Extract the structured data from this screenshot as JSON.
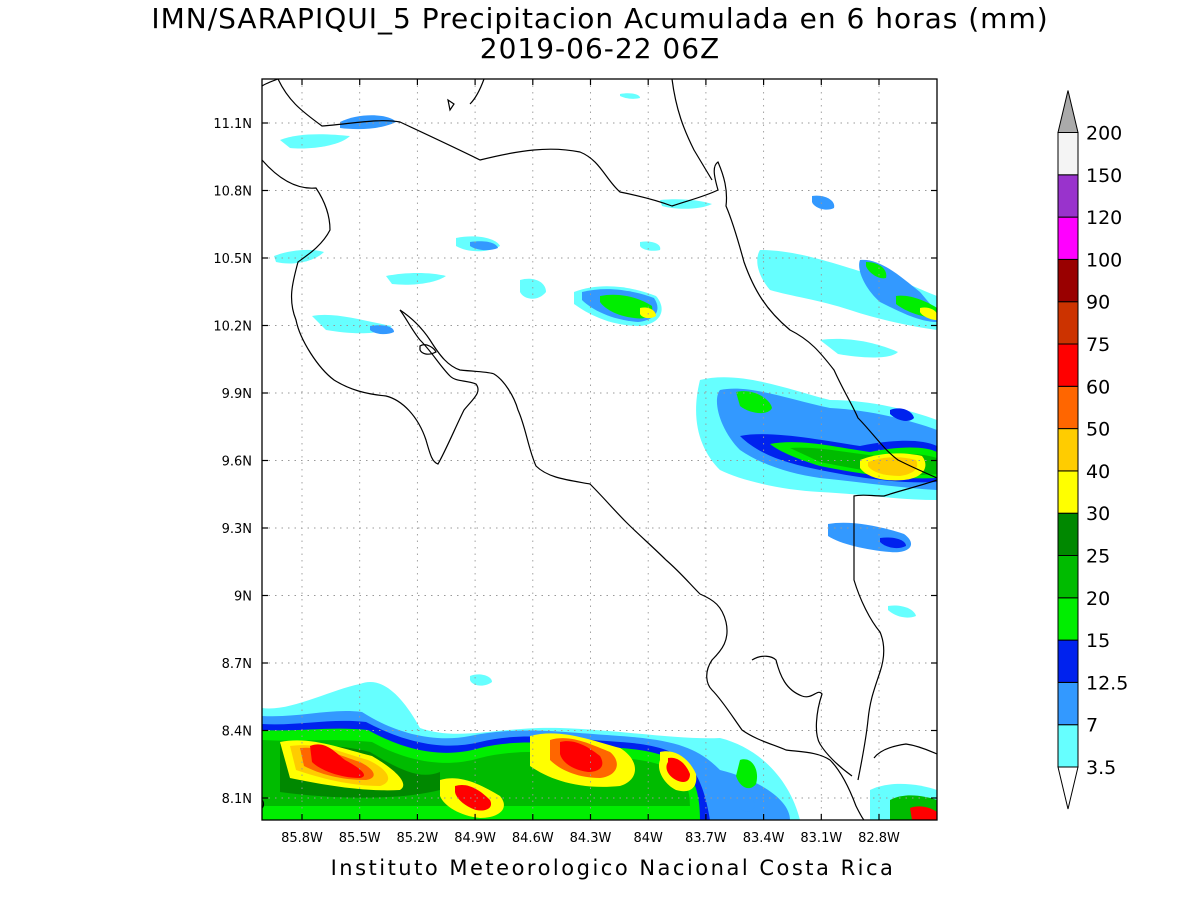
{
  "title": {
    "line1": "IMN/SARAPIQUI_5 Precipitacion Acumulada en 6 horas (mm)",
    "line2": "2019-06-22 06Z"
  },
  "footer": "Instituto Meteorologico Nacional Costa Rica",
  "map": {
    "lat_ticks": [
      {
        "value": 11.1,
        "label": "11.1N"
      },
      {
        "value": 10.8,
        "label": "10.8N"
      },
      {
        "value": 10.5,
        "label": "10.5N"
      },
      {
        "value": 10.2,
        "label": "10.2N"
      },
      {
        "value": 9.9,
        "label": "9.9N"
      },
      {
        "value": 9.6,
        "label": "9.6N"
      },
      {
        "value": 9.3,
        "label": "9.3N"
      },
      {
        "value": 9.0,
        "label": "9N"
      },
      {
        "value": 8.7,
        "label": "8.7N"
      },
      {
        "value": 8.4,
        "label": "8.4N"
      },
      {
        "value": 8.1,
        "label": "8.1N"
      }
    ],
    "lon_ticks": [
      {
        "value": -85.8,
        "label": "85.8W"
      },
      {
        "value": -85.5,
        "label": "85.5W"
      },
      {
        "value": -85.2,
        "label": "85.2W"
      },
      {
        "value": -84.9,
        "label": "84.9W"
      },
      {
        "value": -84.6,
        "label": "84.6W"
      },
      {
        "value": -84.3,
        "label": "84.3W"
      },
      {
        "value": -84.0,
        "label": "84W"
      },
      {
        "value": -83.7,
        "label": "83.7W"
      },
      {
        "value": -83.4,
        "label": "83.4W"
      },
      {
        "value": -83.1,
        "label": "83.1W"
      },
      {
        "value": -82.8,
        "label": "82.8W"
      }
    ]
  },
  "colorbar": {
    "labels": [
      "3.5",
      "7",
      "12.5",
      "15",
      "20",
      "25",
      "30",
      "40",
      "50",
      "60",
      "75",
      "90",
      "100",
      "120",
      "150",
      "200"
    ],
    "colors": [
      "#66ffff",
      "#3399ff",
      "#0022ee",
      "#00ee00",
      "#00bb00",
      "#008800",
      "#ffff00",
      "#ffcc00",
      "#ff6600",
      "#ff0000",
      "#cc3300",
      "#990000",
      "#ff00ff",
      "#9933cc",
      "#f4f4f4"
    ],
    "top_arrow_color": "#aaaaaa",
    "bottom_arrow_color": "#ffffff"
  }
}
